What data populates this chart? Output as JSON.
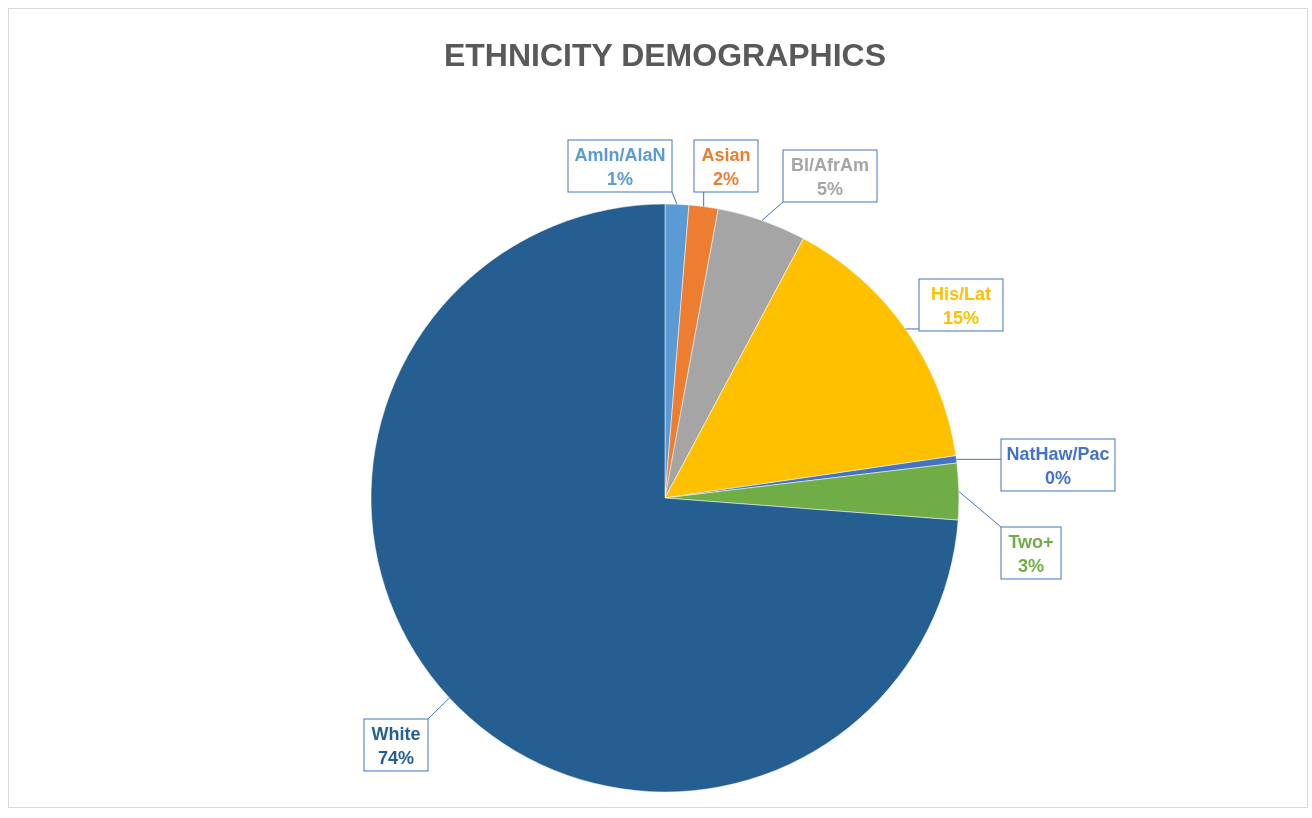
{
  "chart_data": {
    "type": "pie",
    "title": "ETHNICITY DEMOGRAPHICS",
    "categories": [
      "AmIn/AlaN",
      "Asian",
      "Bl/AfrAm",
      "His/Lat",
      "NatHaw/Pac",
      "Two+",
      "White"
    ],
    "values": [
      1.3,
      1.6,
      4.9,
      14.9,
      0.4,
      3.1,
      73.8
    ],
    "value_labels": [
      "1%",
      "2%",
      "5%",
      "15%",
      "0%",
      "3%",
      "74%"
    ],
    "colors": [
      "#5b9bd5",
      "#ed7d31",
      "#a5a5a5",
      "#ffc000",
      "#4472c4",
      "#70ad47",
      "#255e91"
    ]
  }
}
